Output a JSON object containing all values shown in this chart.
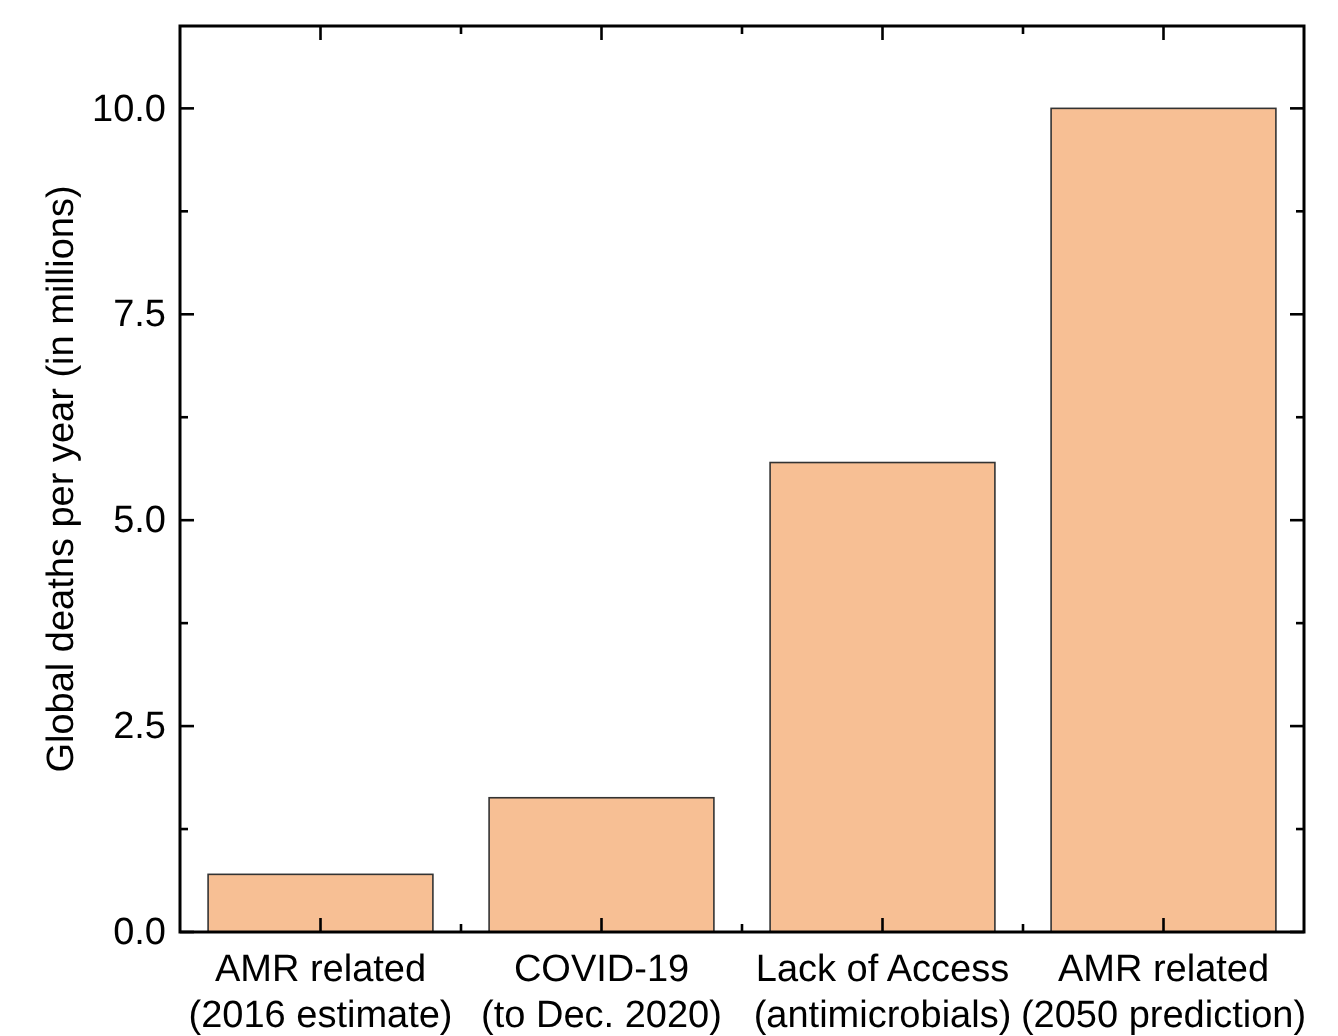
{
  "chart_data": {
    "type": "bar",
    "ylabel": "Global deaths per year (in millions)",
    "categories": [
      "AMR related\n(2016 estimate)",
      "COVID-19\n(to Dec. 2020)",
      "Lack of Access\n(antimicrobials)",
      "AMR related\n(2050 prediction)"
    ],
    "values": [
      0.7,
      1.63,
      5.7,
      10.0
    ],
    "color": "#f7bf94",
    "ylim": [
      0,
      11
    ],
    "yticks": [
      {
        "value": 0,
        "label": "0.0"
      },
      {
        "value": 1.25,
        "label": null
      },
      {
        "value": 2.5,
        "label": "2.5"
      },
      {
        "value": 3.75,
        "label": null
      },
      {
        "value": 5,
        "label": "5.0"
      },
      {
        "value": 6.25,
        "label": null
      },
      {
        "value": 7.5,
        "label": "7.5"
      },
      {
        "value": 8.75,
        "label": null
      },
      {
        "value": 10,
        "label": "10.0"
      }
    ]
  }
}
